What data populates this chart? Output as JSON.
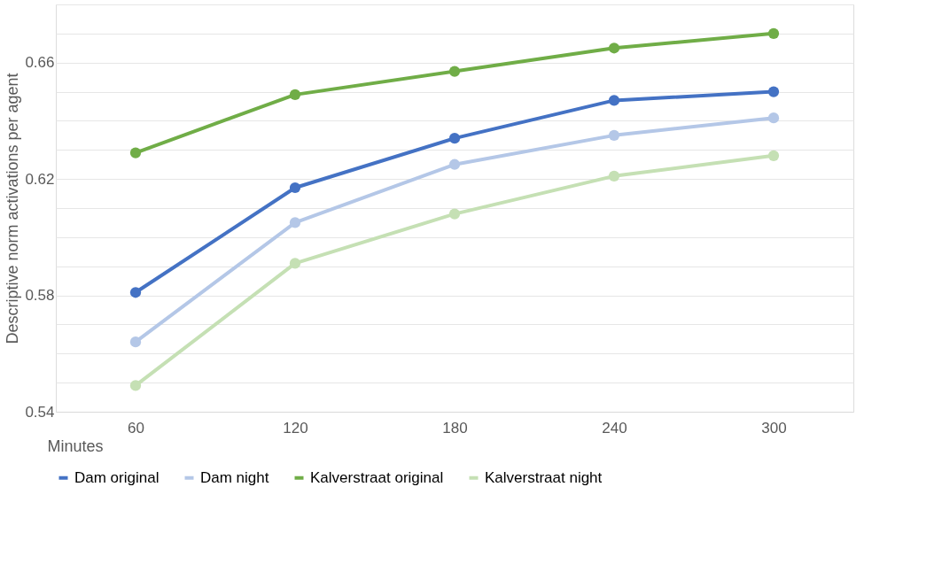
{
  "chart_data": {
    "type": "line",
    "xlabel": "Minutes",
    "ylabel": "Descriptive norm activations per agent",
    "categories": [
      "60",
      "120",
      "180",
      "240",
      "300"
    ],
    "series": [
      {
        "name": "Dam original",
        "color": "#4472c4",
        "values": [
          0.581,
          0.617,
          0.634,
          0.647,
          0.65
        ]
      },
      {
        "name": "Dam night",
        "color": "#b4c7e7",
        "values": [
          0.564,
          0.605,
          0.625,
          0.635,
          0.641
        ]
      },
      {
        "name": "Kalverstraat original",
        "color": "#70ad47",
        "values": [
          0.629,
          0.649,
          0.657,
          0.665,
          0.67
        ]
      },
      {
        "name": "Kalverstraat night",
        "color": "#c5e0b4",
        "values": [
          0.549,
          0.591,
          0.608,
          0.621,
          0.628
        ]
      }
    ],
    "ylim": [
      0.54,
      0.68
    ],
    "yticks": [
      0.54,
      {
        "value": 0.55,
        "label": null
      },
      {
        "value": 0.56,
        "label": null
      },
      {
        "value": 0.57,
        "label": null
      },
      0.58,
      {
        "value": 0.59,
        "label": null
      },
      {
        "value": 0.6,
        "label": null
      },
      {
        "value": 0.61,
        "label": null
      },
      0.62,
      {
        "value": 0.63,
        "label": null
      },
      {
        "value": 0.64,
        "label": null
      },
      {
        "value": 0.65,
        "label": null
      },
      0.66,
      {
        "value": 0.67,
        "label": null
      },
      {
        "value": 0.68,
        "label": null
      }
    ],
    "grid": "y",
    "legend": "bottom",
    "marker": "circle",
    "line_style": "solid"
  }
}
